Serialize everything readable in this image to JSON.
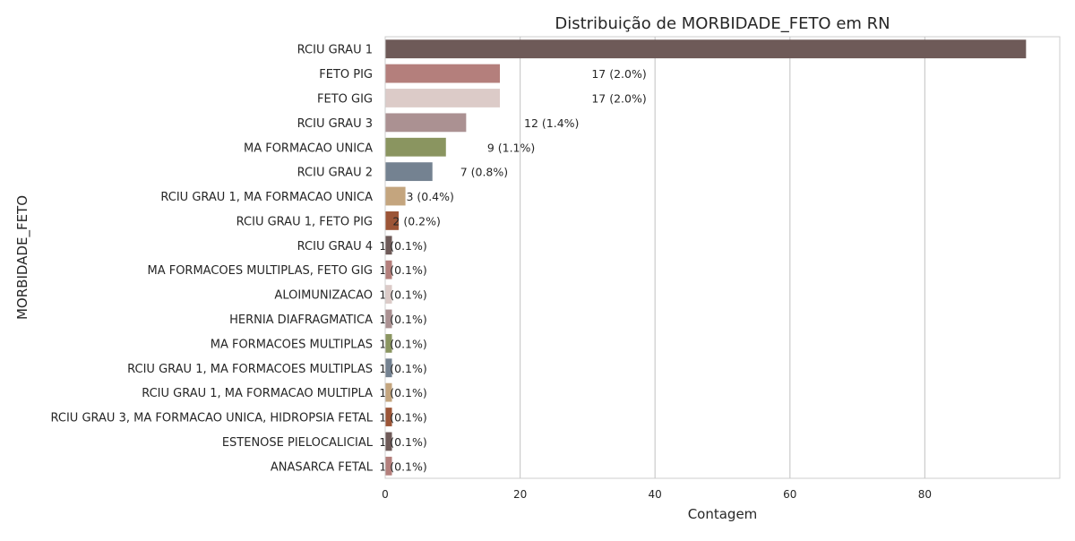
{
  "chart_data": {
    "type": "bar",
    "orientation": "horizontal",
    "title": "Distribuição de MORBIDADE_FETO em RN",
    "xlabel": "Contagem",
    "ylabel": "MORBIDADE_FETO",
    "xlim": [
      0,
      100
    ],
    "xticks": [
      0,
      20,
      40,
      60,
      80
    ],
    "grid": "vertical",
    "categories": [
      "RCIU GRAU 1",
      "FETO PIG",
      "FETO GIG",
      "RCIU GRAU 3",
      "MA FORMACAO UNICA",
      "RCIU GRAU 2",
      "RCIU GRAU 1, MA FORMACAO UNICA",
      "RCIU GRAU 1, FETO PIG",
      "RCIU GRAU 4",
      "MA FORMACOES MULTIPLAS, FETO GIG",
      "ALOIMUNIZACAO",
      "HERNIA DIAFRAGMATICA",
      "MA FORMACOES MULTIPLAS",
      "RCIU GRAU 1, MA FORMACOES MULTIPLAS",
      "RCIU GRAU 1, MA FORMACAO MULTIPLA",
      "RCIU GRAU 3, MA FORMACAO UNICA, HIDROPSIA FETAL",
      "ESTENOSE PIELOCALICIAL",
      "ANASARCA FETAL"
    ],
    "values": [
      95,
      17,
      17,
      12,
      9,
      7,
      3,
      2,
      1,
      1,
      1,
      1,
      1,
      1,
      1,
      1,
      1,
      1
    ],
    "data_labels": [
      "",
      "17 (2.0%)",
      "17 (2.0%)",
      "12 (1.4%)",
      "9 (1.1%)",
      "7 (0.8%)",
      "3 (0.4%)",
      "2 (0.2%)",
      "1 (0.1%)",
      "1 (0.1%)",
      "1 (0.1%)",
      "1 (0.1%)",
      "1 (0.1%)",
      "1 (0.1%)",
      "1 (0.1%)",
      "1 (0.1%)",
      "1 (0.1%)",
      "1 (0.1%)"
    ],
    "colors": [
      "#6e5a58",
      "#b47f7c",
      "#dccbc8",
      "#ab9192",
      "#8a9560",
      "#748291",
      "#c4a57e",
      "#9c5537"
    ]
  }
}
